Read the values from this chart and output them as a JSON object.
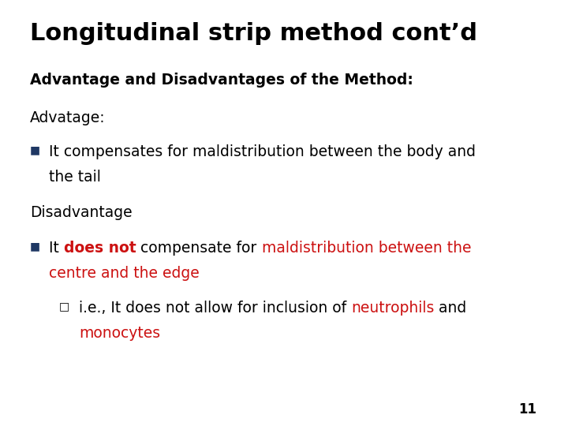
{
  "title": "Longitudinal strip method cont’d",
  "title_fontsize": 22,
  "title_color": "#000000",
  "background_color": "#ffffff",
  "slide_number": "11",
  "body_fontsize": 13.5,
  "heading_fontsize": 13.5,
  "bullet_color": "#1f3864",
  "red_color": "#cc1111",
  "black_color": "#000000"
}
